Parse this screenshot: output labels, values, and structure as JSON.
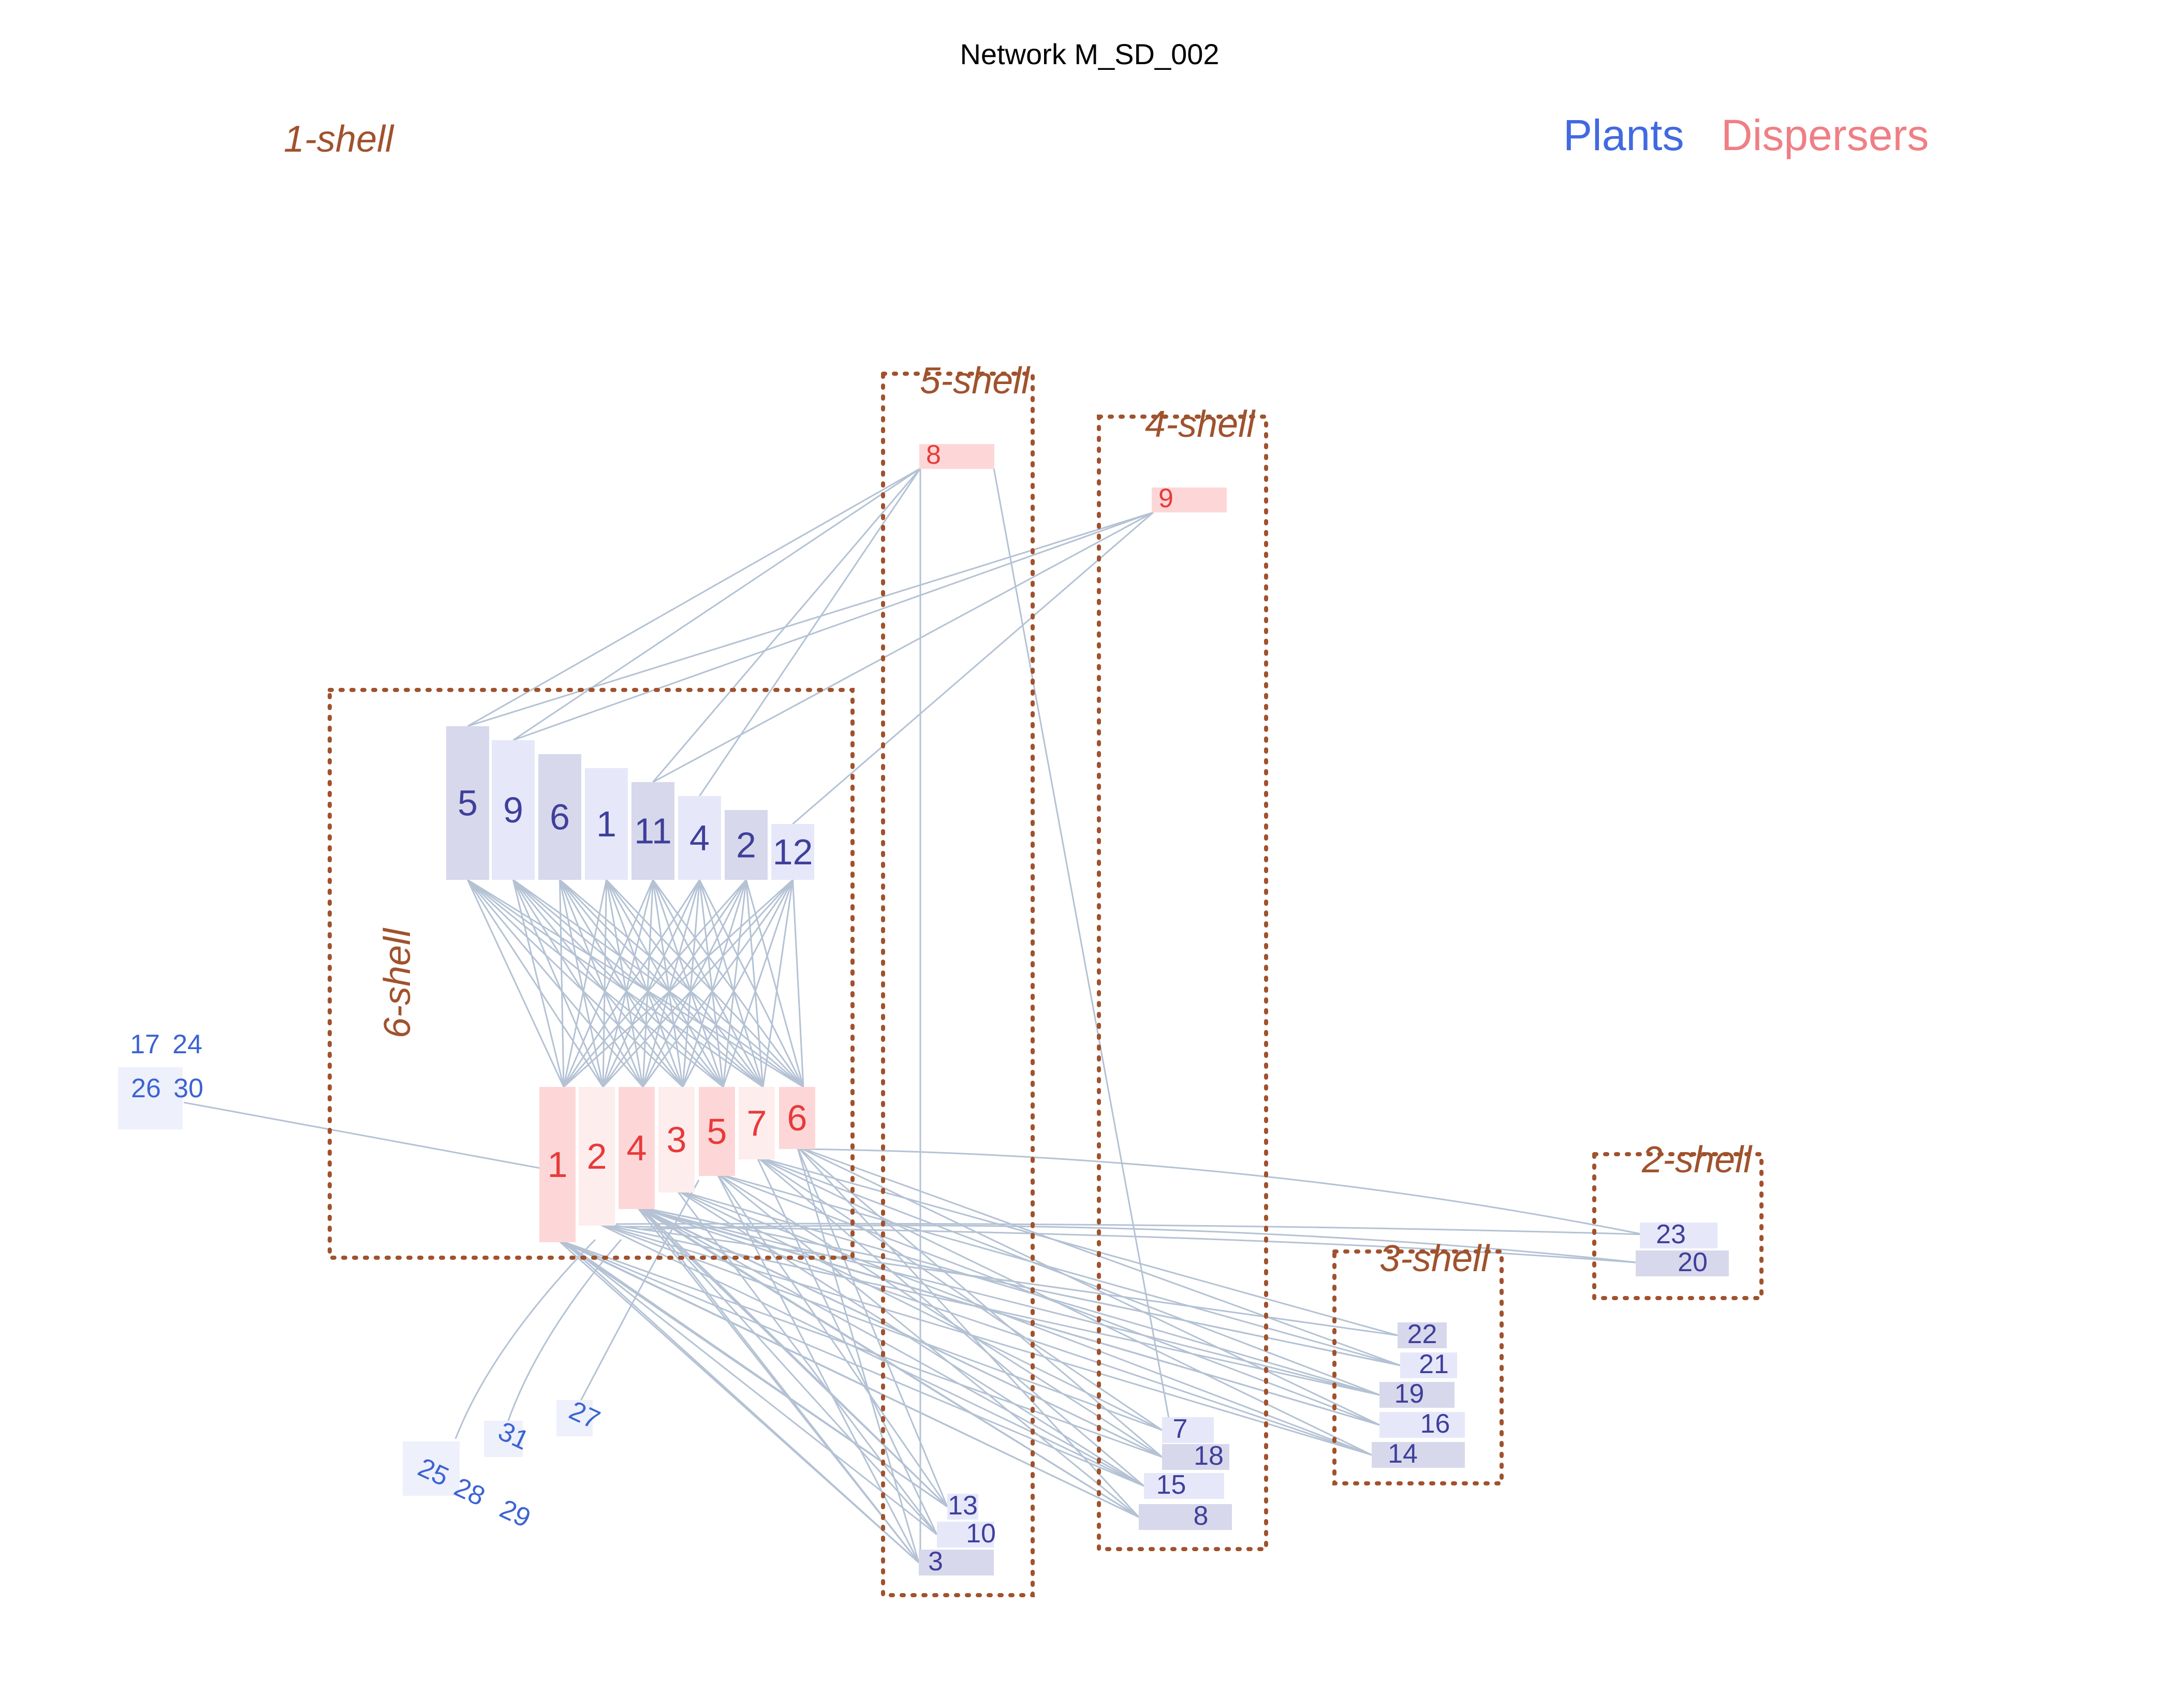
{
  "title": "Network M_SD_002",
  "legend": {
    "plants": "Plants",
    "dispersers": "Dispersers"
  },
  "colors": {
    "plant_label": "#3f3f9b",
    "plant_isolated_label": "#3c64d2",
    "disperser_label": "#e83a3a",
    "plant_legend": "#4169e1",
    "disperser_legend": "#ef7f84",
    "shell": "#a0522d",
    "edge": "#b4c2d4"
  },
  "shells": [
    {
      "id": "s1",
      "label": "1-shell"
    },
    {
      "id": "s2",
      "label": "2-shell"
    },
    {
      "id": "s3",
      "label": "3-shell"
    },
    {
      "id": "s4",
      "label": "4-shell"
    },
    {
      "id": "s5",
      "label": "5-shell"
    },
    {
      "id": "s6",
      "label": "6-shell"
    }
  ],
  "plants": [
    {
      "id": "p5",
      "label": "5",
      "shell": 6
    },
    {
      "id": "p9",
      "label": "9",
      "shell": 6
    },
    {
      "id": "p6",
      "label": "6",
      "shell": 6
    },
    {
      "id": "p1",
      "label": "1",
      "shell": 6
    },
    {
      "id": "p11",
      "label": "11",
      "shell": 6
    },
    {
      "id": "p4",
      "label": "4",
      "shell": 6
    },
    {
      "id": "p2",
      "label": "2",
      "shell": 6
    },
    {
      "id": "p12",
      "label": "12",
      "shell": 6
    },
    {
      "id": "p13",
      "label": "13",
      "shell": 5
    },
    {
      "id": "p10",
      "label": "10",
      "shell": 5
    },
    {
      "id": "p3",
      "label": "3",
      "shell": 5
    },
    {
      "id": "p7",
      "label": "7",
      "shell": 4
    },
    {
      "id": "p18",
      "label": "18",
      "shell": 4
    },
    {
      "id": "p15",
      "label": "15",
      "shell": 4
    },
    {
      "id": "p8",
      "label": "8",
      "shell": 4
    },
    {
      "id": "p22",
      "label": "22",
      "shell": 3
    },
    {
      "id": "p21",
      "label": "21",
      "shell": 3
    },
    {
      "id": "p19",
      "label": "19",
      "shell": 3
    },
    {
      "id": "p16",
      "label": "16",
      "shell": 3
    },
    {
      "id": "p14",
      "label": "14",
      "shell": 3
    },
    {
      "id": "p23",
      "label": "23",
      "shell": 2
    },
    {
      "id": "p20",
      "label": "20",
      "shell": 2
    },
    {
      "id": "p17",
      "label": "17",
      "shell": 1
    },
    {
      "id": "p24",
      "label": "24",
      "shell": 1
    },
    {
      "id": "p26",
      "label": "26",
      "shell": 1
    },
    {
      "id": "p30",
      "label": "30",
      "shell": 1
    },
    {
      "id": "p25",
      "label": "25",
      "shell": 1
    },
    {
      "id": "p28",
      "label": "28",
      "shell": 1
    },
    {
      "id": "p29",
      "label": "29",
      "shell": 1
    },
    {
      "id": "p31",
      "label": "31",
      "shell": 1
    },
    {
      "id": "p27",
      "label": "27",
      "shell": 1
    }
  ],
  "dispersers": [
    {
      "id": "d1",
      "label": "1",
      "shell": 6
    },
    {
      "id": "d2",
      "label": "2",
      "shell": 6
    },
    {
      "id": "d4",
      "label": "4",
      "shell": 6
    },
    {
      "id": "d3",
      "label": "3",
      "shell": 6
    },
    {
      "id": "d5",
      "label": "5",
      "shell": 6
    },
    {
      "id": "d7",
      "label": "7",
      "shell": 6
    },
    {
      "id": "d6",
      "label": "6",
      "shell": 6
    },
    {
      "id": "d8",
      "label": "8",
      "shell": 5
    },
    {
      "id": "d9",
      "label": "9",
      "shell": 4
    }
  ]
}
